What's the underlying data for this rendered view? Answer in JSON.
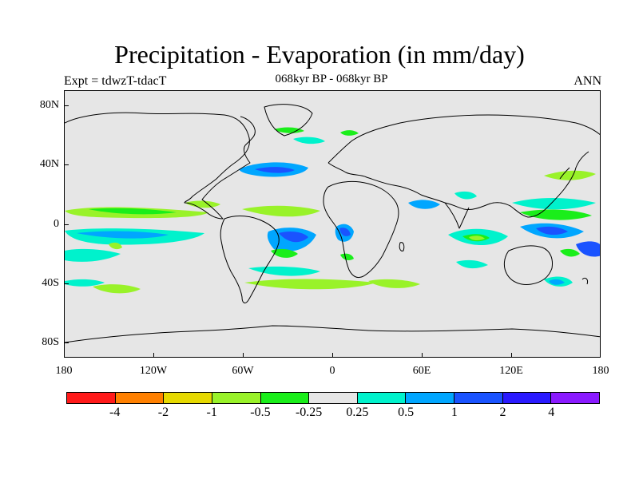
{
  "title": "Precipitation - Evaporation (in mm/day)",
  "subtitle": "068kyr BP - 068kyr BP",
  "experiment": "Expt = tdwzT-tdacT",
  "season": "ANN",
  "map": {
    "projection": "cylindrical-equidistant",
    "lon_range": [
      -180,
      180
    ],
    "lat_range": [
      -90,
      90
    ],
    "background_color": "#e6e6e6",
    "coastline_color": "#000000",
    "y_ticks": [
      {
        "label": "80N",
        "lat": 80
      },
      {
        "label": "40N",
        "lat": 40
      },
      {
        "label": "0",
        "lat": 0
      },
      {
        "label": "40S",
        "lat": -40
      },
      {
        "label": "80S",
        "lat": -80
      }
    ],
    "x_ticks": [
      {
        "label": "180",
        "lon": -180
      },
      {
        "label": "120W",
        "lon": -120
      },
      {
        "label": "60W",
        "lon": -60
      },
      {
        "label": "0",
        "lon": 0
      },
      {
        "label": "60E",
        "lon": 60
      },
      {
        "label": "120E",
        "lon": 120
      },
      {
        "label": "180",
        "lon": 180
      }
    ]
  },
  "colorbar": {
    "colors": [
      "#ff1a1a",
      "#ff8000",
      "#e6d900",
      "#99f229",
      "#1aee1a",
      "#e6e6e6",
      "#00f2cc",
      "#00a6ff",
      "#1a53ff",
      "#2a1aff",
      "#8a1aff"
    ],
    "labels": [
      "-4",
      "-2",
      "-1",
      "-0.5",
      "-0.25",
      "0.25",
      "0.5",
      "1",
      "2",
      "4"
    ]
  }
}
